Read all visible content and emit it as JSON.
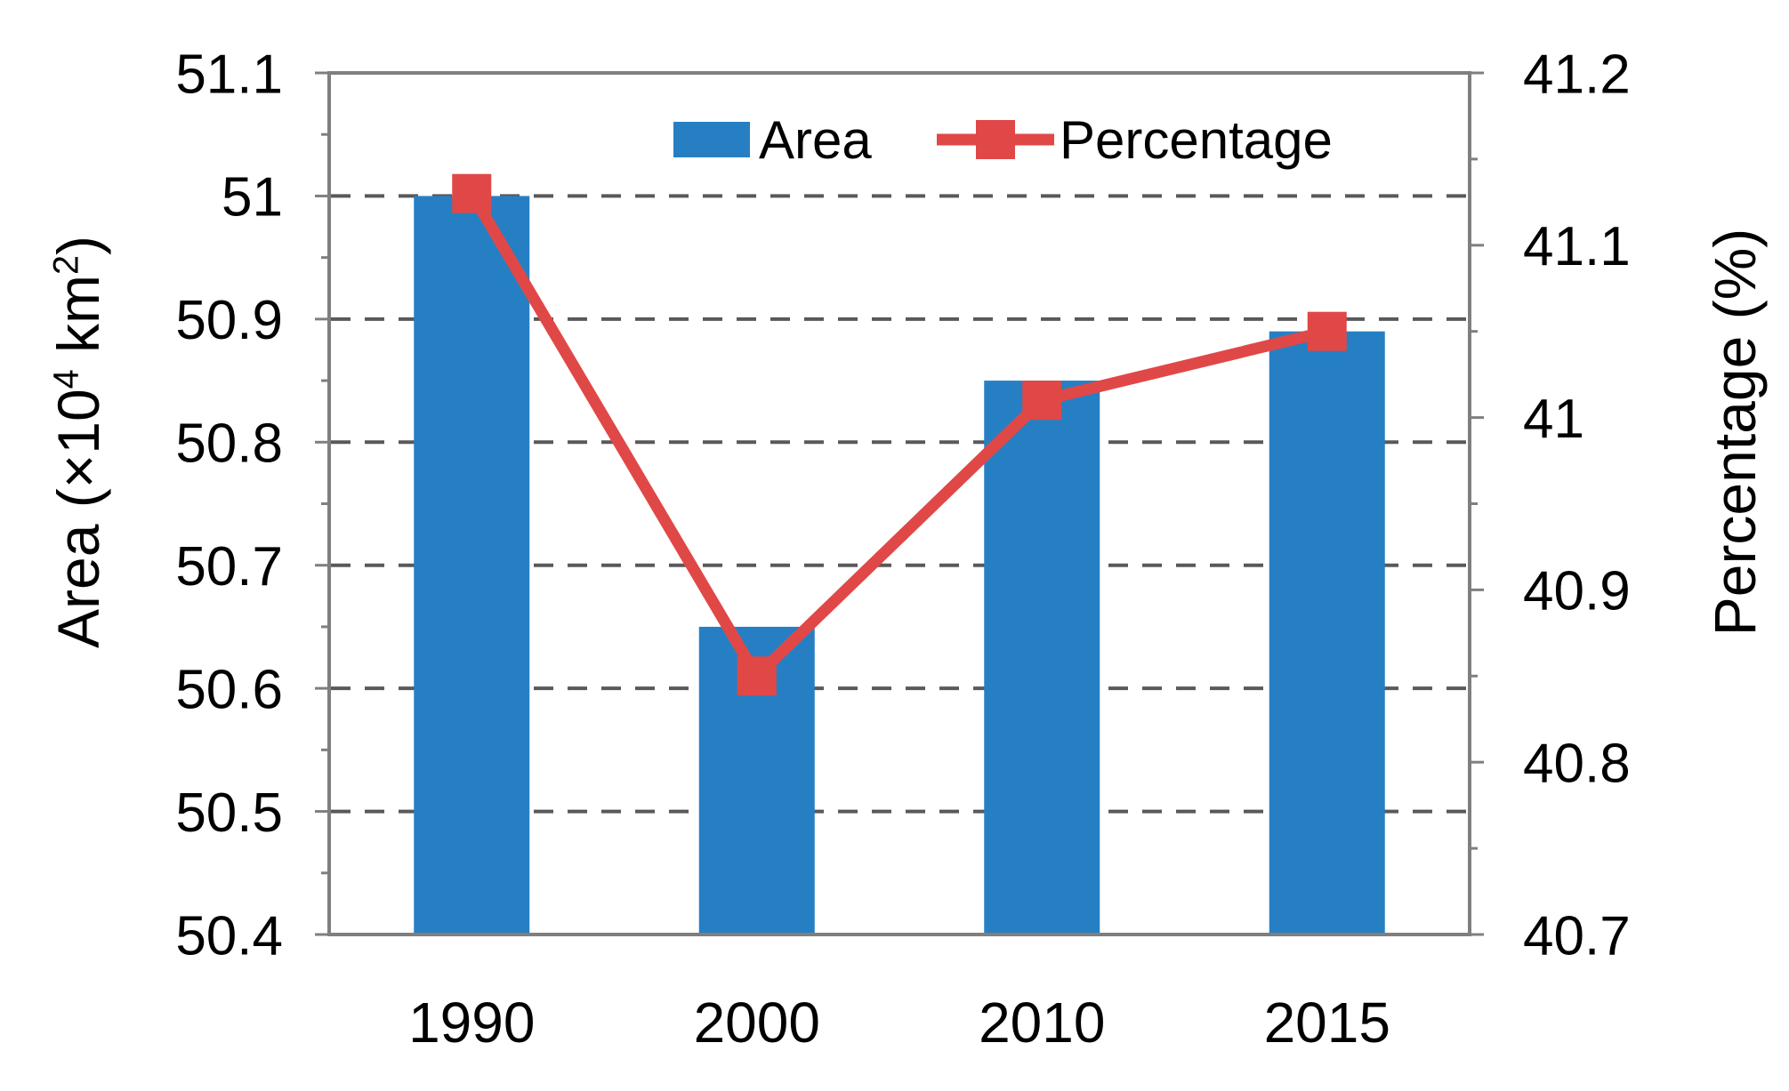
{
  "chart_data": {
    "type": "bar+line",
    "categories": [
      "1990",
      "2000",
      "2010",
      "2015"
    ],
    "series": [
      {
        "name": "Area",
        "type": "bar",
        "axis": "left",
        "values": [
          51.0,
          50.65,
          50.85,
          50.89
        ],
        "color": "#277FC3"
      },
      {
        "name": "Percentage",
        "type": "line",
        "axis": "right",
        "values": [
          41.13,
          40.85,
          41.01,
          41.05
        ],
        "color": "#E04847",
        "marker": "square"
      }
    ],
    "left_axis": {
      "min": 50.4,
      "max": 51.1,
      "tick_step": 0.1,
      "tick_labels": [
        "51.1",
        "51",
        "50.9",
        "50.8",
        "50.7",
        "50.6",
        "50.5",
        "50.4"
      ],
      "label_parts": {
        "prefix": "Area (×10",
        "sup1": "4",
        "mid": " km",
        "sup2": "2",
        "suffix": ")"
      }
    },
    "right_axis": {
      "min": 40.7,
      "max": 41.2,
      "tick_step": 0.1,
      "tick_labels": [
        "41.2",
        "41.1",
        "41",
        "40.9",
        "40.8",
        "40.7"
      ],
      "label": "Percentage (%)"
    },
    "grid": "horizontal-dashed",
    "legend_position": "top-inside"
  },
  "legend": {
    "items": [
      {
        "label": "Area",
        "swatch": "bar",
        "color": "#277FC3"
      },
      {
        "label": "Percentage",
        "swatch": "line-marker",
        "color": "#E04847"
      }
    ]
  },
  "colors": {
    "bar": "#277FC3",
    "line": "#E04847",
    "frame": "#7F7F7F",
    "grid": "#595959",
    "text": "#000000"
  }
}
